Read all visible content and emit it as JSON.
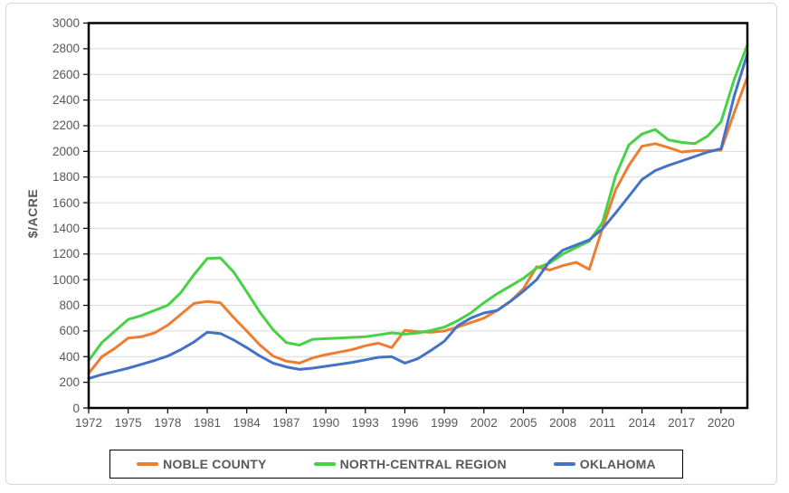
{
  "chart_data": {
    "type": "line",
    "title": "",
    "ylabel": "$/ACRE",
    "xlabel": "",
    "ylim": [
      0,
      3000
    ],
    "ytick_step": 200,
    "grid": true,
    "legend_position": "bottom",
    "xticks": [
      1972,
      1975,
      1978,
      1981,
      1984,
      1987,
      1990,
      1993,
      1996,
      1999,
      2002,
      2005,
      2008,
      2011,
      2014,
      2017,
      2020
    ],
    "x": [
      1972,
      1973,
      1974,
      1975,
      1976,
      1977,
      1978,
      1979,
      1980,
      1981,
      1982,
      1983,
      1984,
      1985,
      1986,
      1987,
      1988,
      1989,
      1990,
      1991,
      1992,
      1993,
      1994,
      1995,
      1996,
      1997,
      1998,
      1999,
      2000,
      2001,
      2002,
      2003,
      2004,
      2005,
      2006,
      2007,
      2008,
      2009,
      2010,
      2011,
      2012,
      2013,
      2014,
      2015,
      2016,
      2017,
      2018,
      2019,
      2020,
      2021,
      2022
    ],
    "series": [
      {
        "name": "NOBLE COUNTY",
        "color": "#ED7D31",
        "values": [
          270,
          400,
          465,
          545,
          555,
          585,
          645,
          730,
          815,
          830,
          820,
          705,
          600,
          490,
          405,
          365,
          350,
          390,
          415,
          435,
          455,
          485,
          505,
          470,
          605,
          595,
          590,
          600,
          630,
          665,
          700,
          760,
          830,
          930,
          1100,
          1075,
          1110,
          1135,
          1080,
          1400,
          1700,
          1890,
          2040,
          2060,
          2030,
          1995,
          2005,
          2005,
          2010,
          2300,
          2580
        ]
      },
      {
        "name": "NORTH-CENTRAL REGION",
        "color": "#47D147",
        "values": [
          370,
          510,
          600,
          690,
          720,
          760,
          800,
          900,
          1040,
          1165,
          1170,
          1060,
          905,
          745,
          610,
          510,
          490,
          535,
          540,
          545,
          550,
          555,
          570,
          585,
          575,
          585,
          605,
          630,
          680,
          740,
          820,
          890,
          950,
          1010,
          1090,
          1130,
          1200,
          1250,
          1300,
          1445,
          1810,
          2050,
          2135,
          2170,
          2090,
          2070,
          2060,
          2120,
          2230,
          2560,
          2830
        ]
      },
      {
        "name": "OKLAHOMA",
        "color": "#4472C4",
        "values": [
          230,
          260,
          285,
          310,
          340,
          370,
          405,
          455,
          515,
          590,
          580,
          530,
          470,
          405,
          350,
          320,
          300,
          310,
          325,
          340,
          355,
          375,
          395,
          400,
          350,
          385,
          450,
          520,
          640,
          700,
          740,
          760,
          830,
          910,
          1000,
          1145,
          1230,
          1270,
          1310,
          1395,
          1520,
          1650,
          1780,
          1850,
          1890,
          1925,
          1960,
          1995,
          2020,
          2430,
          2760
        ]
      }
    ],
    "colors": {
      "gridline": "#d9d9d9",
      "plot_border": "#000000",
      "tick": "#000000",
      "axis_text": "#595959"
    }
  }
}
